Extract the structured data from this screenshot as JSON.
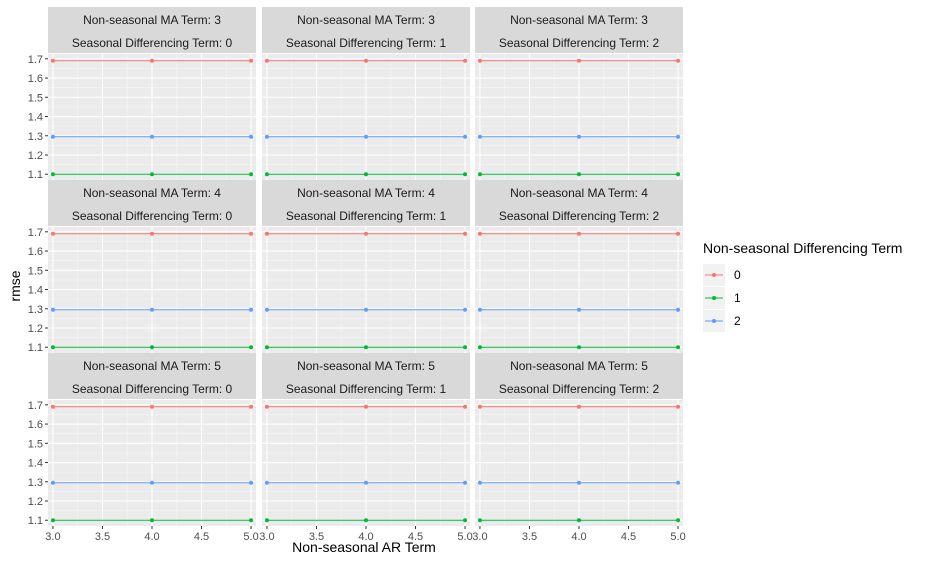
{
  "chart_data": {
    "type": "line",
    "xlabel": "Non-seasonal AR Term",
    "ylabel": "rmse",
    "x": [
      3,
      4,
      5
    ],
    "xlim": [
      2.95,
      5.05
    ],
    "ylim": [
      1.07,
      1.725
    ],
    "x_ticks": [
      3.0,
      3.5,
      4.0,
      4.5,
      5.0
    ],
    "x_tick_labels": [
      "3.0",
      "3.5",
      "4.0",
      "4.5",
      "5.0"
    ],
    "y_ticks": [
      1.1,
      1.2,
      1.3,
      1.4,
      1.5,
      1.6,
      1.7
    ],
    "y_tick_labels": [
      "1.1",
      "1.2",
      "1.3",
      "1.4",
      "1.5",
      "1.6",
      "1.7"
    ],
    "legend": {
      "title": "Non-seasonal Differencing Term",
      "position": "right",
      "entries": [
        {
          "label": "0",
          "color": "#F8766D"
        },
        {
          "label": "1",
          "color": "#00BA38"
        },
        {
          "label": "2",
          "color": "#619CFF"
        }
      ]
    },
    "facet_rows": [
      "Non-seasonal MA Term: 3",
      "Non-seasonal MA Term: 4",
      "Non-seasonal MA Term: 5"
    ],
    "facet_cols": [
      "Seasonal Differencing Term: 0",
      "Seasonal Differencing Term: 1",
      "Seasonal Differencing Term: 2"
    ],
    "series": [
      {
        "name": "0",
        "color": "#F8766D",
        "values": [
          1.69,
          1.69,
          1.69
        ]
      },
      {
        "name": "1",
        "color": "#00BA38",
        "values": [
          1.1,
          1.1,
          1.1
        ]
      },
      {
        "name": "2",
        "color": "#619CFF",
        "values": [
          1.295,
          1.295,
          1.295
        ]
      }
    ]
  }
}
